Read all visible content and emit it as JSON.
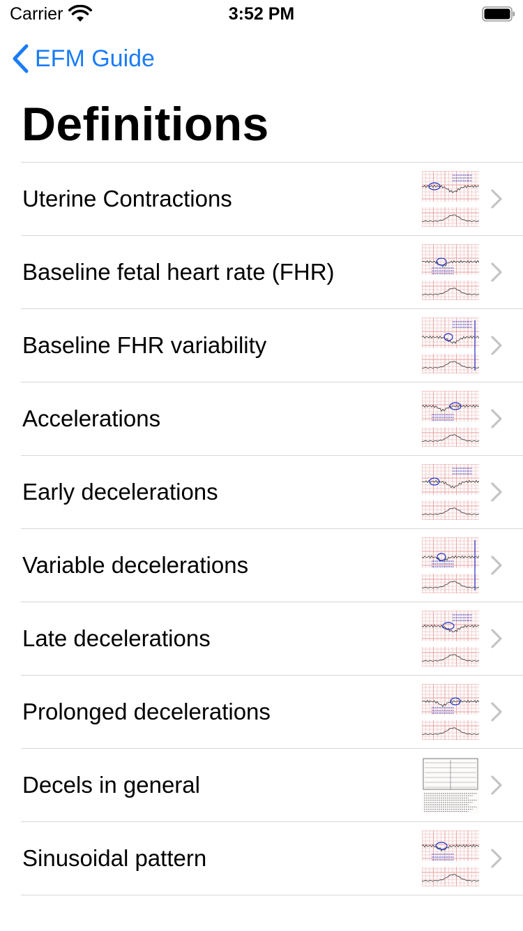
{
  "status_bar": {
    "carrier": "Carrier",
    "time": "3:52 PM"
  },
  "nav": {
    "back_label": "EFM Guide",
    "title": "Definitions"
  },
  "colors": {
    "accent": "#1A7CF5",
    "separator": "#d6d6d8",
    "chevron": "#c4c4c7",
    "grid": "#e8a0a0",
    "ink": "#1f33c8"
  },
  "icons": {
    "back": "chevron-left-icon",
    "row": "chevron-right-icon",
    "wifi": "wifi-icon",
    "battery": "battery-icon"
  },
  "items": [
    {
      "label": "Uterine Contractions"
    },
    {
      "label": "Baseline fetal heart rate (FHR)"
    },
    {
      "label": "Baseline FHR variability"
    },
    {
      "label": "Accelerations"
    },
    {
      "label": "Early decelerations"
    },
    {
      "label": "Variable decelerations"
    },
    {
      "label": "Late decelerations"
    },
    {
      "label": "Prolonged decelerations"
    },
    {
      "label": "Decels in general"
    },
    {
      "label": "Sinusoidal pattern"
    }
  ]
}
